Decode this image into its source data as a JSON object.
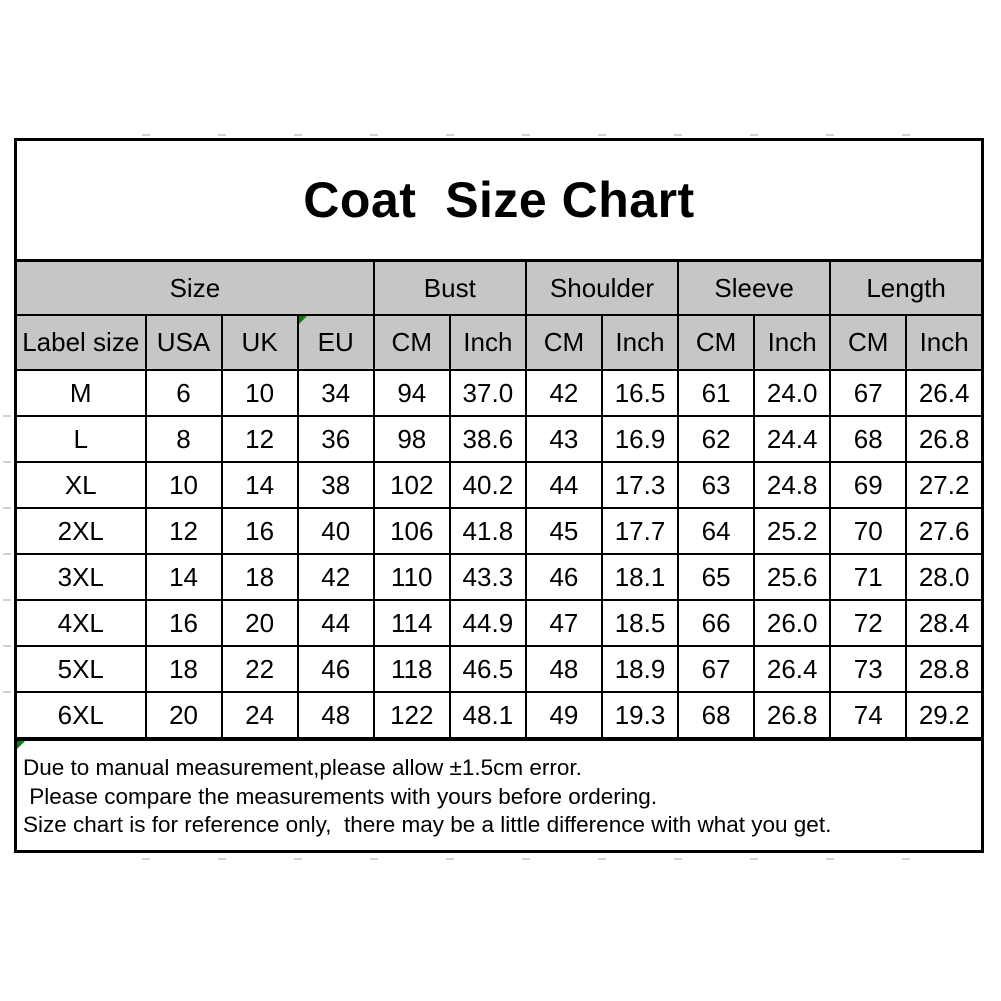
{
  "page": {
    "title": "Coat  Size Chart"
  },
  "table": {
    "groups": [
      {
        "label": "Size",
        "span": 4
      },
      {
        "label": "Bust",
        "span": 2
      },
      {
        "label": "Shoulder",
        "span": 2
      },
      {
        "label": "Sleeve",
        "span": 2
      },
      {
        "label": "Length",
        "span": 2
      }
    ],
    "columns": [
      "Label size",
      "USA",
      "UK",
      "EU",
      "CM",
      "Inch",
      "CM",
      "Inch",
      "CM",
      "Inch",
      "CM",
      "Inch"
    ],
    "rows": [
      [
        "M",
        "6",
        "10",
        "34",
        "94",
        "37.0",
        "42",
        "16.5",
        "61",
        "24.0",
        "67",
        "26.4"
      ],
      [
        "L",
        "8",
        "12",
        "36",
        "98",
        "38.6",
        "43",
        "16.9",
        "62",
        "24.4",
        "68",
        "26.8"
      ],
      [
        "XL",
        "10",
        "14",
        "38",
        "102",
        "40.2",
        "44",
        "17.3",
        "63",
        "24.8",
        "69",
        "27.2"
      ],
      [
        "2XL",
        "12",
        "16",
        "40",
        "106",
        "41.8",
        "45",
        "17.7",
        "64",
        "25.2",
        "70",
        "27.6"
      ],
      [
        "3XL",
        "14",
        "18",
        "42",
        "110",
        "43.3",
        "46",
        "18.1",
        "65",
        "25.6",
        "71",
        "28.0"
      ],
      [
        "4XL",
        "16",
        "20",
        "44",
        "114",
        "44.9",
        "47",
        "18.5",
        "66",
        "26.0",
        "72",
        "28.4"
      ],
      [
        "5XL",
        "18",
        "22",
        "46",
        "118",
        "46.5",
        "48",
        "18.9",
        "67",
        "26.4",
        "73",
        "28.8"
      ],
      [
        "6XL",
        "20",
        "24",
        "48",
        "122",
        "48.1",
        "49",
        "19.3",
        "68",
        "26.8",
        "74",
        "29.2"
      ]
    ]
  },
  "notes": {
    "lines": [
      "Due to manual measurement,please allow ±1.5cm error.",
      " Please compare the measurements with yours before ordering.",
      "Size chart is for reference only,  there may be a little difference with what you get."
    ]
  },
  "colors": {
    "header_bg": "#c6c6c6",
    "border": "#000000",
    "marker_green": "#0a7d0a",
    "text": "#000000"
  }
}
